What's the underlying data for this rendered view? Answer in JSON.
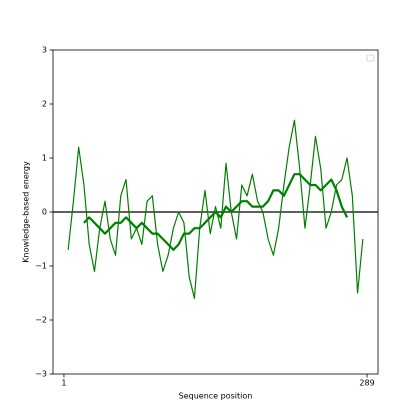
{
  "chart_data": {
    "type": "line",
    "xlabel": "Sequence position",
    "ylabel": "Knowledge-based energy",
    "x": [
      5,
      10,
      15,
      20,
      25,
      30,
      35,
      40,
      45,
      50,
      55,
      60,
      65,
      70,
      75,
      80,
      85,
      90,
      95,
      100,
      105,
      110,
      115,
      120,
      125,
      130,
      135,
      140,
      145,
      150,
      155,
      160,
      165,
      170,
      175,
      180,
      185,
      190,
      195,
      200,
      205,
      210,
      215,
      220,
      225,
      230,
      235,
      240,
      245,
      250,
      255,
      260,
      265,
      270,
      275,
      280,
      285
    ],
    "series": [
      {
        "color": "#008000",
        "width": 1.2,
        "values": [
          -0.7,
          0.2,
          1.2,
          0.5,
          -0.6,
          -1.1,
          -0.3,
          0.2,
          -0.5,
          -0.8,
          0.3,
          0.6,
          -0.5,
          -0.3,
          -0.6,
          0.2,
          0.3,
          -0.6,
          -1.1,
          -0.8,
          -0.3,
          0.0,
          -0.2,
          -1.2,
          -1.6,
          -0.3,
          0.4,
          -0.4,
          0.1,
          -0.3,
          0.9,
          0.0,
          -0.5,
          0.5,
          0.3,
          0.7,
          0.2,
          0.0,
          -0.5,
          -0.8,
          -0.3,
          0.5,
          1.2,
          1.7,
          0.8,
          -0.3,
          0.5,
          1.4,
          0.8,
          -0.3,
          0.0,
          0.5,
          0.6,
          1.0,
          0.3,
          -1.5,
          -0.5
        ]
      },
      {
        "color": "#008000",
        "width": 2.2,
        "values": [
          null,
          null,
          null,
          -0.2,
          -0.1,
          -0.2,
          -0.3,
          -0.4,
          -0.3,
          -0.2,
          -0.2,
          -0.1,
          -0.2,
          -0.3,
          -0.2,
          -0.3,
          -0.4,
          -0.4,
          -0.5,
          -0.6,
          -0.7,
          -0.6,
          -0.4,
          -0.4,
          -0.3,
          -0.3,
          -0.2,
          -0.1,
          0.0,
          -0.1,
          0.1,
          0.0,
          0.1,
          0.2,
          0.2,
          0.1,
          0.1,
          0.1,
          0.2,
          0.4,
          0.4,
          0.3,
          0.5,
          0.7,
          0.7,
          0.6,
          0.5,
          0.5,
          0.4,
          0.5,
          0.6,
          0.4,
          0.1,
          -0.1,
          null,
          null,
          null
        ]
      }
    ],
    "hlines": [
      {
        "value": 0,
        "color": "#000000"
      }
    ],
    "xlim": [
      -9.4,
      299.4
    ],
    "xticks": [
      1,
      289
    ],
    "ylim": [
      -3,
      3
    ],
    "yticks": [
      {
        "value": -3,
        "label": "−3"
      },
      {
        "value": -2,
        "label": "−2"
      },
      {
        "value": -1,
        "label": "−1"
      },
      0,
      1,
      2,
      3
    ],
    "legend": "upper right"
  }
}
